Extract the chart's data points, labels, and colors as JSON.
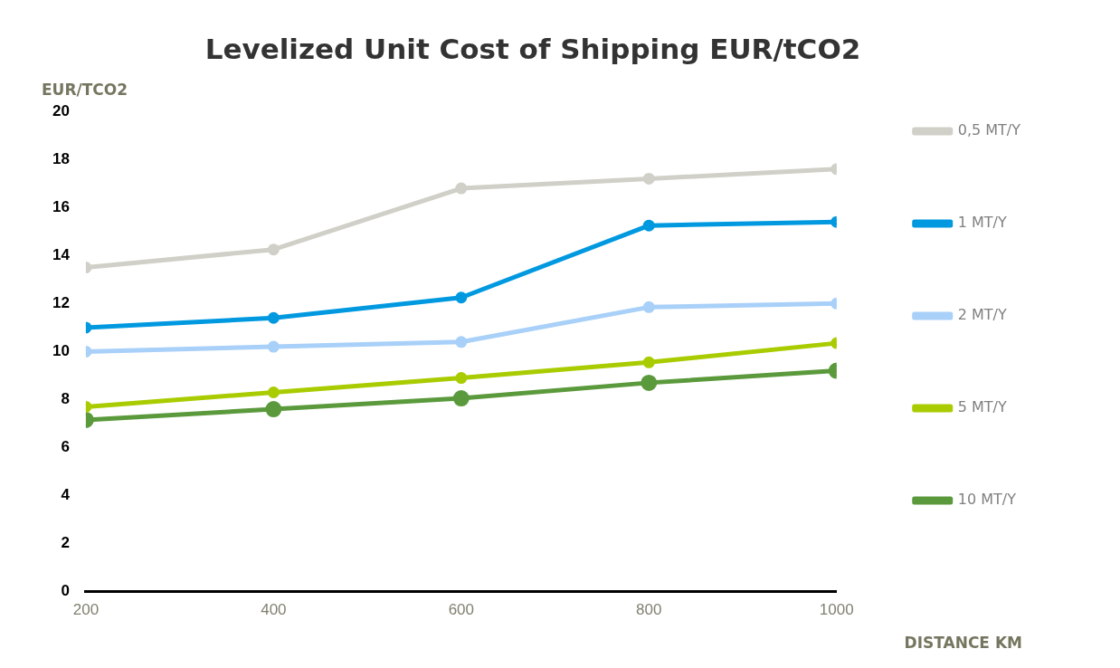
{
  "chart_data": {
    "type": "line",
    "title": "Levelized Unit Cost of Shipping EUR/tCO2",
    "xlabel": "DISTANCE KM",
    "ylabel": "EUR/TCO2",
    "x": [
      200,
      400,
      600,
      800,
      1000
    ],
    "series": [
      {
        "name": "0,5 MT/Y",
        "color": "#d0d0c8",
        "values": [
          13.5,
          14.25,
          16.8,
          17.2,
          17.6
        ]
      },
      {
        "name": "1 MT/Y",
        "color": "#0099e0",
        "values": [
          11.0,
          11.4,
          12.25,
          15.25,
          15.4
        ]
      },
      {
        "name": "2 MT/Y",
        "color": "#a8d0f8",
        "values": [
          10.0,
          10.2,
          10.4,
          11.85,
          12.0
        ]
      },
      {
        "name": "5 MT/Y",
        "color": "#a8cc00",
        "values": [
          7.7,
          8.3,
          8.9,
          9.55,
          10.35
        ]
      },
      {
        "name": "10 MT/Y",
        "color": "#5b9a3c",
        "values": [
          7.15,
          7.6,
          8.05,
          8.7,
          9.2
        ]
      }
    ],
    "xlim": [
      200,
      1000
    ],
    "xticks": [
      200,
      400,
      600,
      800,
      1000
    ],
    "ylim": [
      0,
      20
    ],
    "yticks": [
      0,
      2,
      4,
      6,
      8,
      10,
      12,
      14,
      16,
      18,
      20
    ],
    "grid": false,
    "legend": "right",
    "marker": "circle",
    "line_style": "solid"
  }
}
